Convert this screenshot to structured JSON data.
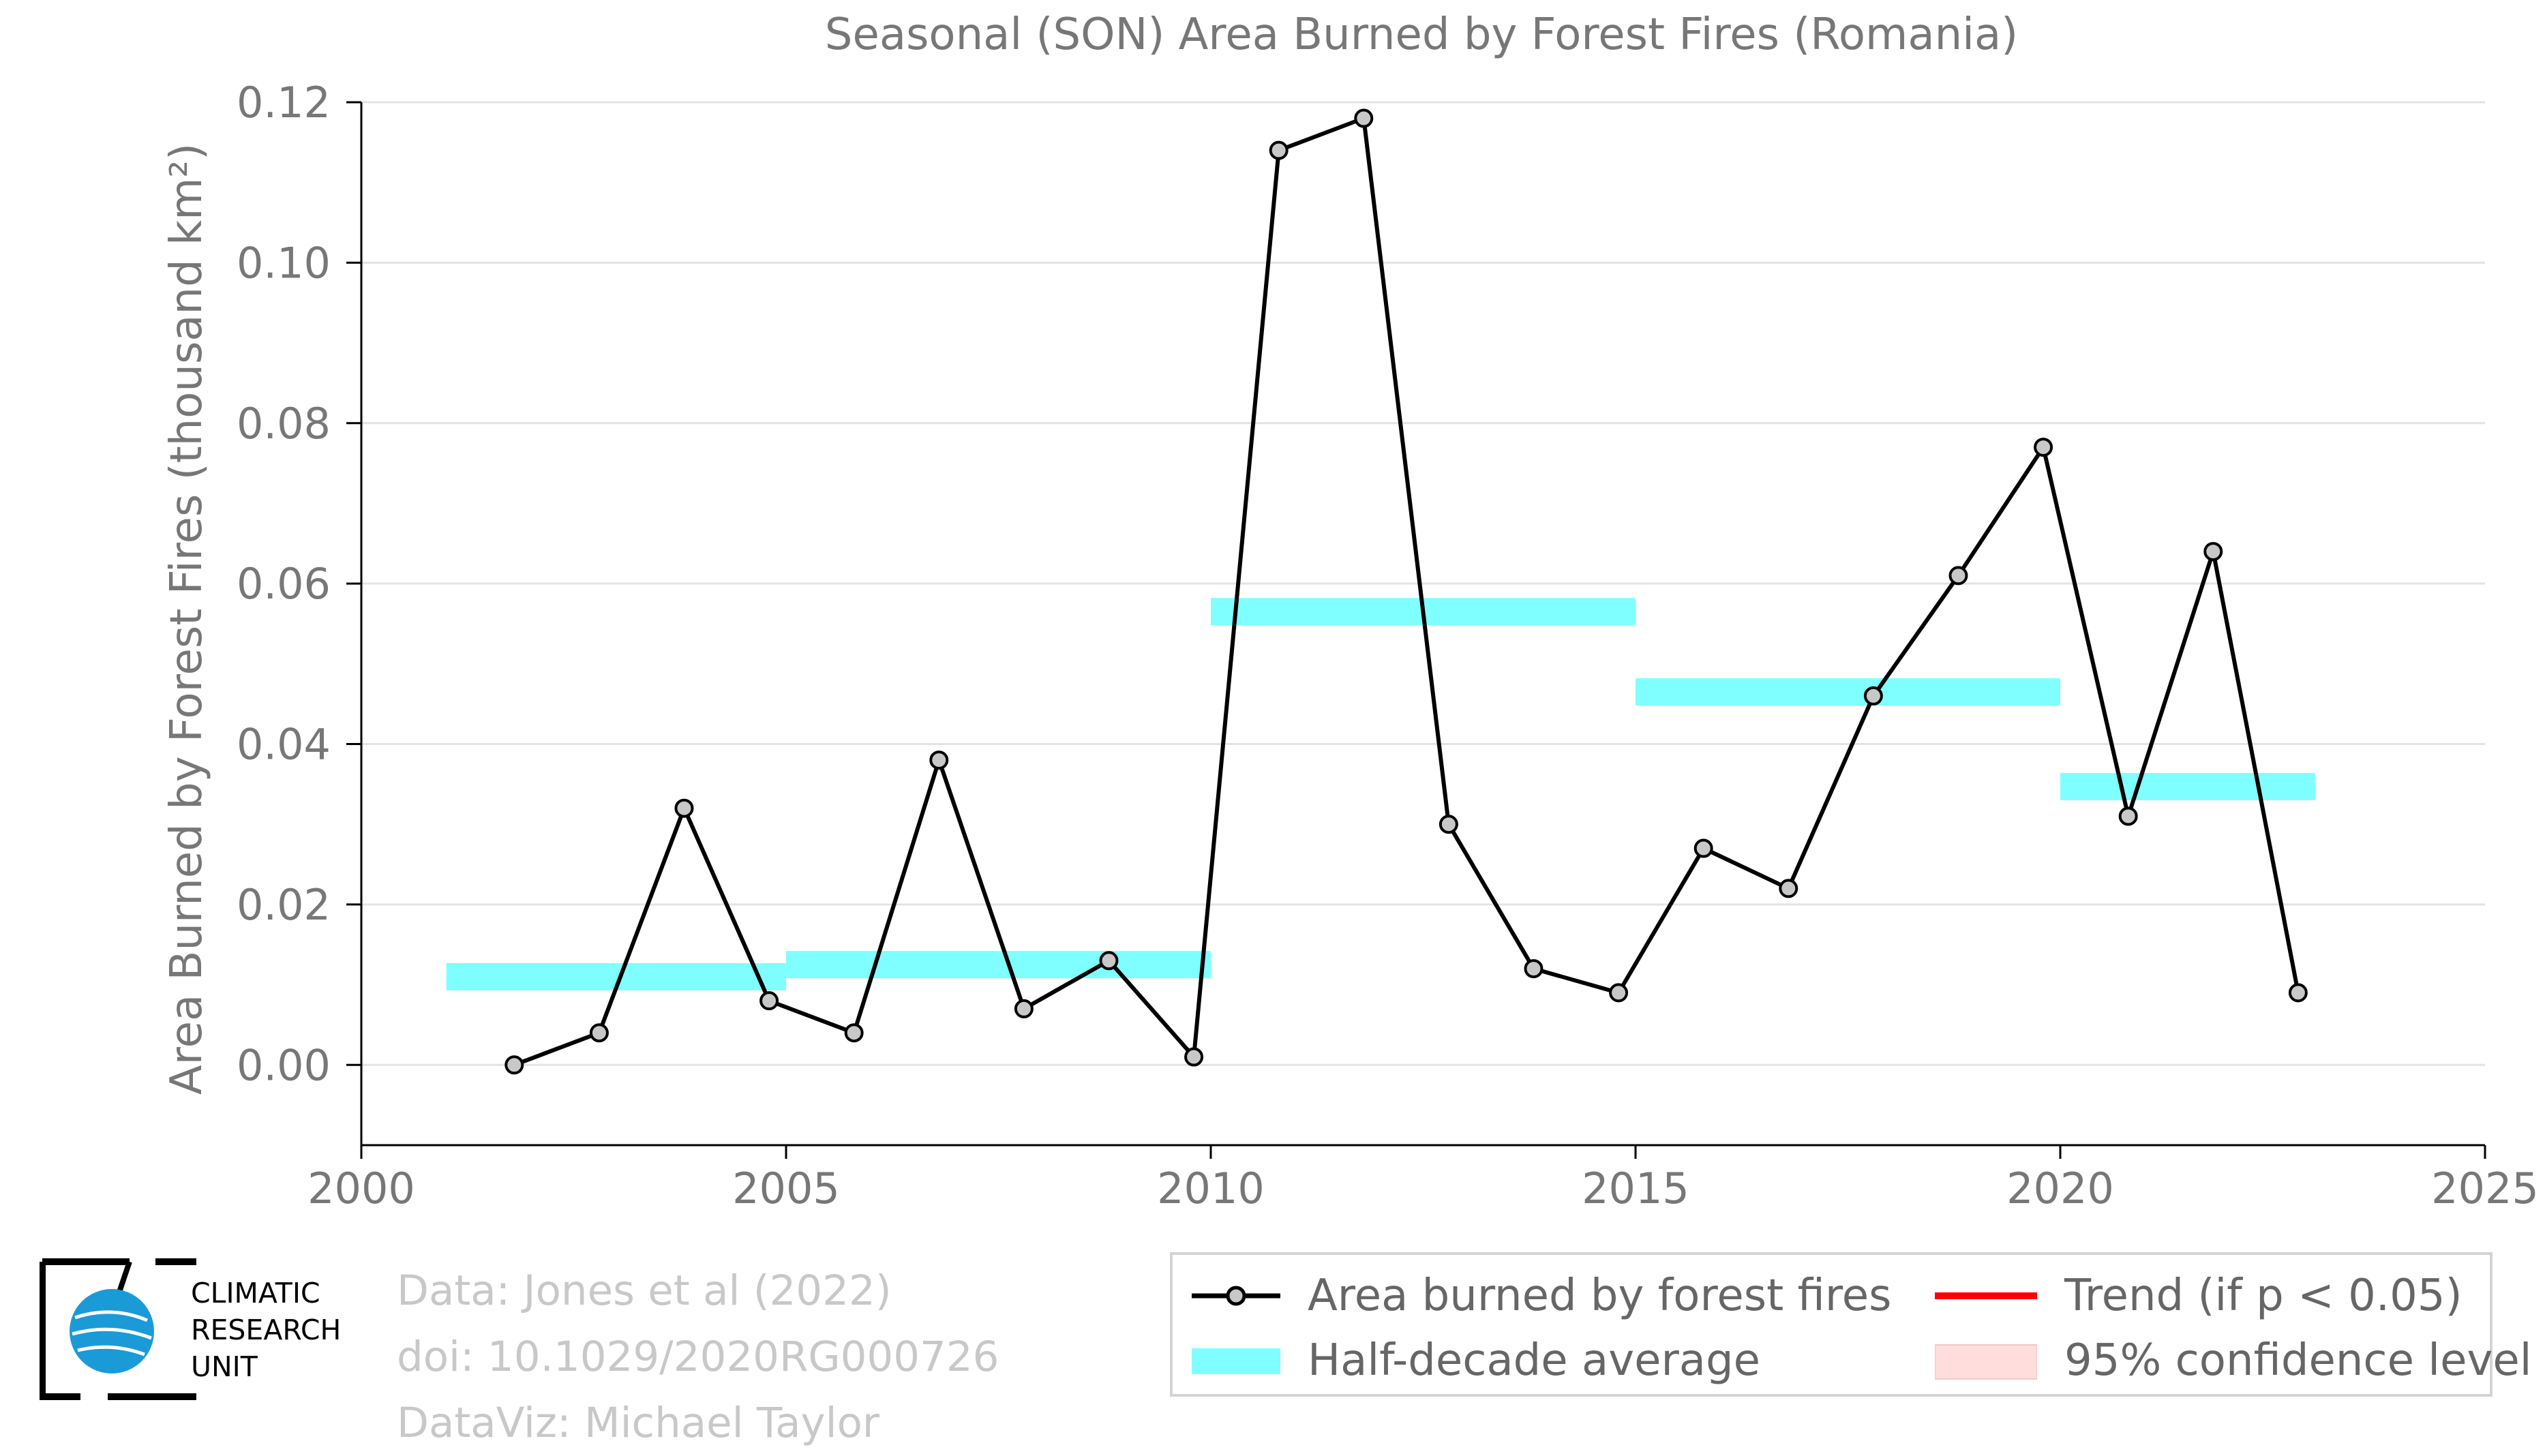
{
  "chart_data": {
    "type": "line",
    "title": "Seasonal (SON) Area Burned by Forest Fires (Romania)",
    "ylabel": "Area Burned by Forest Fires (thousand km²)",
    "xlabel": "",
    "xlim": [
      2000,
      2025
    ],
    "ylim": [
      -0.01,
      0.12
    ],
    "xticks": [
      "2000",
      "2005",
      "2010",
      "2015",
      "2020",
      "2025"
    ],
    "yticks": [
      "0.00",
      "0.02",
      "0.04",
      "0.06",
      "0.08",
      "0.10",
      "0.12"
    ],
    "grid": "horizontal",
    "series": [
      {
        "name": "Area burned by forest fires",
        "color": "#000000",
        "marker_fill": "#c8c8c8",
        "x": [
          2001.8,
          2002.8,
          2003.8,
          2004.8,
          2005.8,
          2006.8,
          2007.8,
          2008.8,
          2009.8,
          2010.8,
          2011.8,
          2012.8,
          2013.8,
          2014.8,
          2015.8,
          2016.8,
          2017.8,
          2018.8,
          2019.8,
          2020.8,
          2021.8,
          2022.8
        ],
        "y": [
          0.0,
          0.004,
          0.032,
          0.008,
          0.004,
          0.038,
          0.007,
          0.013,
          0.001,
          0.114,
          0.118,
          0.03,
          0.012,
          0.009,
          0.027,
          0.022,
          0.046,
          0.061,
          0.077,
          0.031,
          0.064,
          0.009
        ]
      }
    ],
    "half_decade_average": {
      "name": "Half-decade average",
      "color": "#7fffff",
      "segments": [
        {
          "x0": 2001,
          "x1": 2005,
          "y": 0.011
        },
        {
          "x0": 2005,
          "x1": 2010,
          "y": 0.0125
        },
        {
          "x0": 2010,
          "x1": 2015,
          "y": 0.0565
        },
        {
          "x0": 2015,
          "x1": 2020,
          "y": 0.0465
        },
        {
          "x0": 2020,
          "x1": 2023,
          "y": 0.0347
        }
      ]
    },
    "legend": {
      "placement": "bottom-right",
      "items": [
        {
          "label": "Area burned by forest fires",
          "kind": "line-marker",
          "color": "#000000"
        },
        {
          "label": "Trend (if p < 0.05)",
          "kind": "line",
          "color": "#ff0000"
        },
        {
          "label": "Half-decade average",
          "kind": "band",
          "color": "#7fffff"
        },
        {
          "label": "95% confidence level",
          "kind": "band",
          "color": "#ffdddd"
        }
      ]
    }
  },
  "credits": {
    "data": "Data: Jones et al (2022)",
    "doi": "doi: 10.1029/2020RG000726",
    "viz": "DataViz: Michael Taylor"
  },
  "logo": {
    "line1": "CLIMATIC",
    "line2": "RESEARCH",
    "line3": "UNIT"
  }
}
